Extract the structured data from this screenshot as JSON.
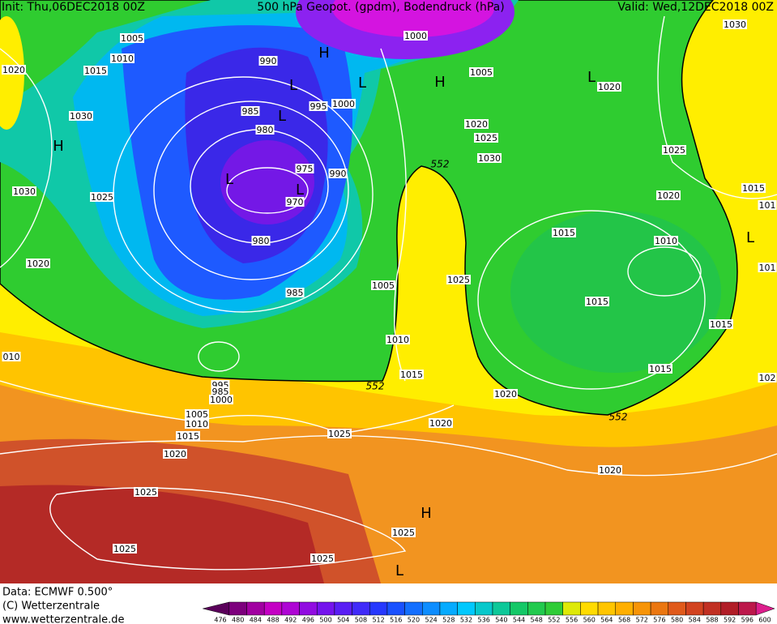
{
  "header": {
    "init": "Init: Thu,06DEC2018 00Z",
    "title": "500 hPa Geopot. (gpdm), Bodendruck (hPa)",
    "valid": "Valid: Wed,12DEC2018 00Z"
  },
  "isobar_labels": [
    "1005",
    "1010",
    "1015",
    "1020",
    "990",
    "1000",
    "1005",
    "1020",
    "985",
    "995",
    "1000",
    "980",
    "1030",
    "1020",
    "1025",
    "1030",
    "975",
    "990",
    "970",
    "1030",
    "1025",
    "1025",
    "1020",
    "1015",
    "1015",
    "1010",
    "980",
    "1020",
    "1025",
    "1005",
    "985",
    "1015",
    "1015",
    "1010",
    "1015",
    "1015",
    "995",
    "985",
    "1000",
    "1020",
    "1005",
    "1010",
    "1015",
    "1020",
    "1025",
    "1020",
    "1020",
    "1025",
    "1025",
    "1025",
    "1025",
    "1030",
    "101",
    "101",
    "102",
    "010"
  ],
  "geopotential_labels": [
    "552",
    "552",
    "552"
  ],
  "pressure_centers": [
    "H",
    "H",
    "H",
    "H",
    "L",
    "L",
    "L",
    "L",
    "L",
    "L",
    "L",
    "L"
  ],
  "footer": {
    "data": "Data: ECMWF  0.500°",
    "copyright": "(C) Wetterzentrale",
    "url": "www.wetterzentrale.de"
  },
  "legend": {
    "labels": [
      476,
      480,
      484,
      488,
      492,
      496,
      500,
      504,
      508,
      512,
      516,
      520,
      524,
      528,
      532,
      536,
      540,
      544,
      548,
      552,
      556,
      560,
      564,
      568,
      572,
      576,
      580,
      584,
      588,
      592,
      596,
      600
    ]
  }
}
